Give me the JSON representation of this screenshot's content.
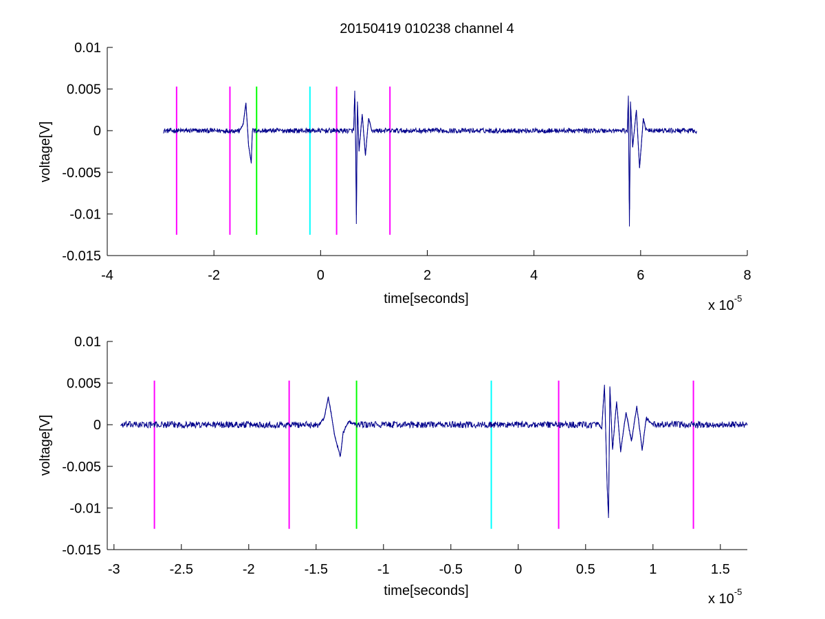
{
  "figure_title": "20150419 010238 channel 4",
  "colors": {
    "signal": "#00008b",
    "magenta": "#ff00ff",
    "green": "#00ff00",
    "cyan": "#00ffff",
    "axis": "#000000"
  },
  "chart_data": [
    {
      "type": "line",
      "title": "20150419 010238 channel 4",
      "xlabel": "time[seconds]",
      "ylabel": "voltage[V]",
      "x_multiplier_label": "x 10",
      "x_multiplier_exponent": "-5",
      "xlim": [
        -4,
        8
      ],
      "ylim": [
        -0.015,
        0.01
      ],
      "xticks": [
        -4,
        -2,
        0,
        2,
        4,
        6,
        8
      ],
      "xtick_labels": [
        "-4",
        "-2",
        "0",
        "2",
        "4",
        "6",
        "8"
      ],
      "yticks": [
        0.01,
        0.005,
        0,
        -0.005,
        -0.01,
        -0.015
      ],
      "ytick_labels": [
        "0.01",
        "0.005",
        "0",
        "-0.005",
        "-0.01",
        "-0.015"
      ],
      "grid": false,
      "signal": {
        "x_range": [
          -2.95,
          7.05
        ],
        "baseline": 0.0,
        "noise_amplitude": 0.0003,
        "events": [
          {
            "x": [
              -1.52,
              -1.45,
              -1.4,
              -1.35,
              -1.3,
              -1.28
            ],
            "y": [
              0.0,
              0.0008,
              0.0033,
              -0.0018,
              -0.0038,
              0.0
            ]
          },
          {
            "x": [
              0.62,
              0.64,
              0.66,
              0.67,
              0.69,
              0.72,
              0.78,
              0.84,
              0.9,
              0.96
            ],
            "y": [
              0.0,
              0.0048,
              -0.003,
              -0.0112,
              0.0035,
              -0.0025,
              0.002,
              -0.003,
              0.0015,
              0.0
            ]
          },
          {
            "x": [
              5.75,
              5.77,
              5.78,
              5.79,
              5.81,
              5.85,
              5.92,
              5.98,
              6.05,
              6.1
            ],
            "y": [
              0.0,
              0.0042,
              -0.004,
              -0.0115,
              0.0035,
              -0.002,
              0.0025,
              -0.0045,
              0.0015,
              0.0
            ]
          }
        ]
      },
      "markers": [
        {
          "x": -2.7,
          "color": "magenta",
          "y": [
            -0.0125,
            0.0053
          ]
        },
        {
          "x": -1.7,
          "color": "magenta",
          "y": [
            -0.0125,
            0.0053
          ]
        },
        {
          "x": -1.2,
          "color": "green",
          "y": [
            -0.0125,
            0.0053
          ]
        },
        {
          "x": -0.2,
          "color": "cyan",
          "y": [
            -0.0125,
            0.0053
          ]
        },
        {
          "x": 0.3,
          "color": "magenta",
          "y": [
            -0.0125,
            0.0053
          ]
        },
        {
          "x": 1.3,
          "color": "magenta",
          "y": [
            -0.0125,
            0.0053
          ]
        }
      ]
    },
    {
      "type": "line",
      "title": "",
      "xlabel": "time[seconds]",
      "ylabel": "voltage[V]",
      "x_multiplier_label": "x 10",
      "x_multiplier_exponent": "-5",
      "xlim": [
        -3.05,
        1.7
      ],
      "ylim": [
        -0.015,
        0.01
      ],
      "xticks": [
        -3,
        -2.5,
        -2,
        -1.5,
        -1,
        -0.5,
        0,
        0.5,
        1,
        1.5
      ],
      "xtick_labels": [
        "-3",
        "-2.5",
        "-2",
        "-1.5",
        "-1",
        "-0.5",
        "0",
        "0.5",
        "1",
        "1.5"
      ],
      "yticks": [
        0.01,
        0.005,
        0,
        -0.005,
        -0.01,
        -0.015
      ],
      "ytick_labels": [
        "0.01",
        "0.005",
        "0",
        "-0.005",
        "-0.01",
        "-0.015"
      ],
      "grid": false,
      "signal": {
        "x_range": [
          -2.95,
          1.7
        ],
        "baseline": 0.0,
        "noise_amplitude": 0.0004,
        "events": [
          {
            "x": [
              -1.48,
              -1.44,
              -1.41,
              -1.39,
              -1.36,
              -1.32,
              -1.3,
              -1.26,
              -1.2
            ],
            "y": [
              0.0,
              0.0008,
              0.0033,
              0.0015,
              -0.0015,
              -0.0038,
              -0.001,
              0.0004,
              0.0
            ]
          },
          {
            "x": [
              0.6,
              0.62,
              0.64,
              0.66,
              0.67,
              0.68,
              0.7,
              0.73,
              0.76,
              0.8,
              0.84,
              0.88,
              0.92,
              0.95,
              1.0
            ],
            "y": [
              0.0,
              -0.0005,
              0.0048,
              -0.0075,
              -0.0112,
              0.0046,
              -0.003,
              0.0028,
              -0.0032,
              0.0015,
              -0.002,
              0.0022,
              -0.003,
              0.0008,
              0.0
            ]
          }
        ]
      },
      "markers": [
        {
          "x": -2.7,
          "color": "magenta",
          "y": [
            -0.0125,
            0.0053
          ]
        },
        {
          "x": -1.7,
          "color": "magenta",
          "y": [
            -0.0125,
            0.0053
          ]
        },
        {
          "x": -1.2,
          "color": "green",
          "y": [
            -0.0125,
            0.0053
          ]
        },
        {
          "x": -0.2,
          "color": "cyan",
          "y": [
            -0.0125,
            0.0053
          ]
        },
        {
          "x": 0.3,
          "color": "magenta",
          "y": [
            -0.0125,
            0.0053
          ]
        },
        {
          "x": 1.3,
          "color": "magenta",
          "y": [
            -0.0125,
            0.0053
          ]
        }
      ]
    }
  ]
}
